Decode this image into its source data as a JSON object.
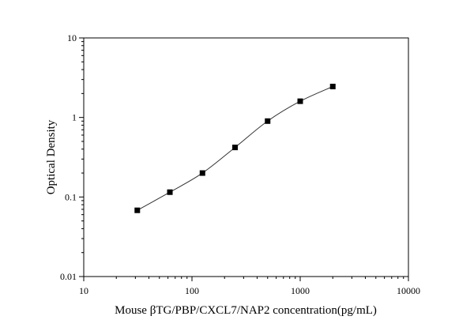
{
  "chart_data": {
    "type": "scatter",
    "title": "",
    "xlabel": "Mouse βTG/PBP/CXCL7/NAP2 concentration(pg/mL)",
    "ylabel": "Optical Density",
    "x_scale": "log",
    "y_scale": "log",
    "xlim": [
      10,
      10000
    ],
    "ylim": [
      0.01,
      10
    ],
    "x_ticks": [
      {
        "value": 10,
        "label": "10"
      },
      {
        "value": 100,
        "label": "100"
      },
      {
        "value": 1000,
        "label": "1000"
      },
      {
        "value": 10000,
        "label": "10000"
      }
    ],
    "y_ticks": [
      {
        "value": 0.01,
        "label": "0.01"
      },
      {
        "value": 0.1,
        "label": "0.1"
      },
      {
        "value": 1,
        "label": "1"
      },
      {
        "value": 10,
        "label": "10"
      }
    ],
    "grid": false,
    "legend": "none",
    "series": [
      {
        "marker": "square",
        "color": "#000000",
        "fit_line": true,
        "x": [
          31.25,
          62.5,
          125,
          250,
          500,
          1000,
          2000
        ],
        "y": [
          0.068,
          0.115,
          0.2,
          0.42,
          0.9,
          1.6,
          2.45
        ]
      }
    ]
  }
}
